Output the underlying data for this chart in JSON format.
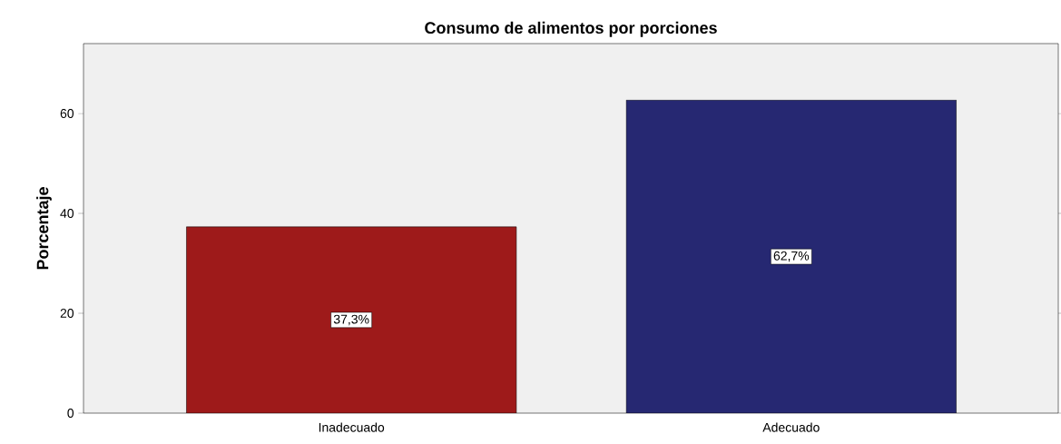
{
  "chart_data": {
    "type": "bar",
    "title": "Consumo de alimentos por porciones",
    "ylabel": "Porcentaje",
    "categories": [
      "Inadecuado",
      "Adecuado"
    ],
    "values": [
      37.3,
      62.7
    ],
    "colors": [
      "#9e1a1a",
      "#262872"
    ],
    "value_labels": [
      "37,3%",
      "62,7%"
    ],
    "ylim": [
      0,
      74
    ],
    "yticks": [
      0,
      20,
      40,
      60
    ],
    "grid": false
  }
}
